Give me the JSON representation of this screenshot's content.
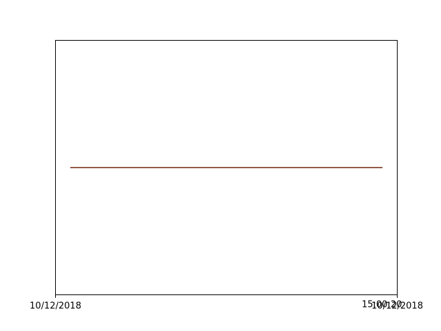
{
  "chart_data": {
    "type": "line",
    "title": "",
    "xlabel": "",
    "ylabel": "",
    "grid": false,
    "xlim": [
      0,
      1
    ],
    "ylim": [
      -1,
      1
    ],
    "x_ticks": [
      {
        "value": 0,
        "label": "10/12/2018"
      },
      {
        "value": 1,
        "label": "10/12/2018"
      }
    ],
    "x_annotations": [
      {
        "value": 0.955,
        "label": "15:00:20"
      }
    ],
    "series": [
      {
        "color": "#1f77b4",
        "x": [
          0.045,
          0.955
        ],
        "y": [
          0.0,
          0.0
        ]
      },
      {
        "color": "#ff7f0e",
        "x": [
          0.045,
          0.955
        ],
        "y": [
          0.0,
          0.0
        ]
      },
      {
        "color": "#2ca02c",
        "x": [
          0.045,
          0.955
        ],
        "y": [
          0.0,
          0.0
        ]
      },
      {
        "color": "#d62728",
        "x": [
          0.045,
          0.955
        ],
        "y": [
          0.0,
          0.0
        ]
      },
      {
        "color": "#8c564b",
        "x": [
          0.045,
          0.955
        ],
        "y": [
          0.0,
          0.0
        ]
      }
    ]
  }
}
